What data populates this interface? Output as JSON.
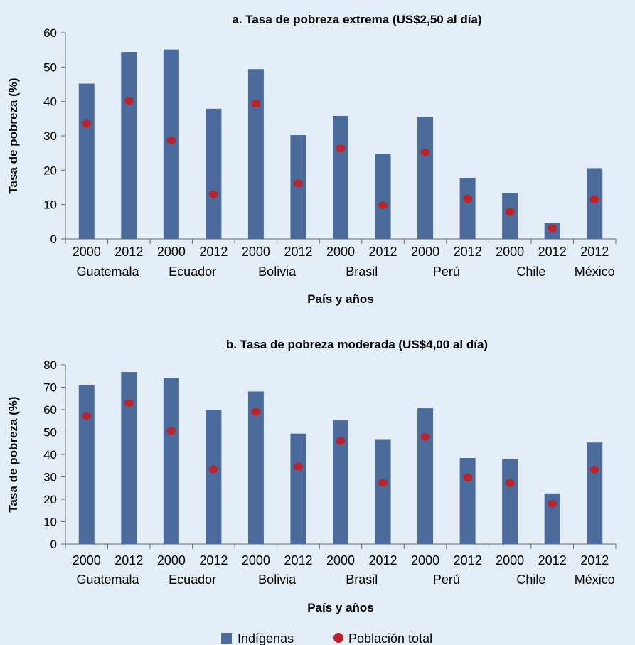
{
  "chart_data": [
    {
      "type": "bar",
      "title": "a. Tasa de pobreza extrema (US$2,50 al día)",
      "xlabel": "País y años",
      "ylabel": "Tasa de pobreza (%)",
      "ylim": [
        0,
        60
      ],
      "yticks": [
        0,
        10,
        20,
        30,
        40,
        50,
        60
      ],
      "categories": [
        "2000",
        "2012",
        "2000",
        "2012",
        "2000",
        "2012",
        "2000",
        "2012",
        "2000",
        "2012",
        "2000",
        "2012",
        "2012"
      ],
      "groups": [
        {
          "label": "Guatemala",
          "span": 2
        },
        {
          "label": "Ecuador",
          "span": 2
        },
        {
          "label": "Bolivia",
          "span": 2
        },
        {
          "label": "Brasil",
          "span": 2
        },
        {
          "label": "Perú",
          "span": 2
        },
        {
          "label": "Chile",
          "span": 2
        },
        {
          "label": "México",
          "span": 1
        }
      ],
      "series": [
        {
          "name": "Indígenas",
          "type": "bar",
          "color": "#4a6b9b",
          "values": [
            45.2,
            54.4,
            55.1,
            37.9,
            49.4,
            30.2,
            35.8,
            24.8,
            35.5,
            17.7,
            13.3,
            4.7,
            20.6
          ]
        },
        {
          "name": "Población total",
          "type": "dot",
          "color": "#b8252d",
          "values": [
            33.6,
            40.2,
            28.7,
            13.0,
            39.4,
            16.2,
            26.3,
            9.8,
            25.2,
            11.7,
            7.9,
            3.1,
            11.5
          ]
        }
      ],
      "grid": false
    },
    {
      "type": "bar",
      "title": "b. Tasa de pobreza moderada (US$4,00 al día)",
      "xlabel": "País y años",
      "ylabel": "Tasa de pobreza (%)",
      "ylim": [
        0,
        80
      ],
      "yticks": [
        0,
        10,
        20,
        30,
        40,
        50,
        60,
        70,
        80
      ],
      "categories": [
        "2000",
        "2012",
        "2000",
        "2012",
        "2000",
        "2012",
        "2000",
        "2012",
        "2000",
        "2012",
        "2000",
        "2012",
        "2012"
      ],
      "groups": [
        {
          "label": "Guatemala",
          "span": 2
        },
        {
          "label": "Ecuador",
          "span": 2
        },
        {
          "label": "Bolivia",
          "span": 2
        },
        {
          "label": "Brasil",
          "span": 2
        },
        {
          "label": "Perú",
          "span": 2
        },
        {
          "label": "Chile",
          "span": 2
        },
        {
          "label": "México",
          "span": 1
        }
      ],
      "series": [
        {
          "name": "Indígenas",
          "type": "bar",
          "color": "#4a6b9b",
          "values": [
            70.8,
            76.8,
            74.1,
            60.0,
            68.1,
            49.3,
            55.2,
            46.5,
            60.6,
            38.4,
            37.9,
            22.6,
            45.3
          ]
        },
        {
          "name": "Población total",
          "type": "dot",
          "color": "#b8252d",
          "values": [
            57.1,
            62.9,
            50.6,
            33.4,
            59.0,
            34.6,
            46.1,
            27.4,
            47.9,
            29.7,
            27.3,
            18.0,
            33.3
          ]
        }
      ],
      "grid": false
    }
  ],
  "legend": {
    "position": "bottom",
    "items": [
      {
        "label": "Indígenas",
        "marker": "square",
        "color": "#4a6b9b"
      },
      {
        "label": "Población total",
        "marker": "dot",
        "color": "#b8252d"
      }
    ]
  },
  "colors": {
    "background": "#e4eef6",
    "bar": "#4a6b9b",
    "dot": "#b8252d",
    "axis": "#6b6b6b"
  }
}
